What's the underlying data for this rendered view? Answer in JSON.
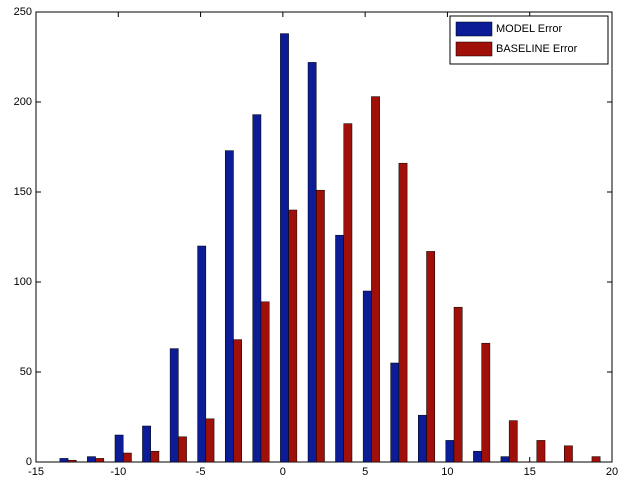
{
  "chart_data": {
    "type": "grouped-bar",
    "x": [
      -13.05,
      -11.38,
      -9.7,
      -8.03,
      -6.35,
      -4.68,
      -3.0,
      -1.33,
      0.35,
      2.03,
      3.7,
      5.38,
      7.05,
      8.73,
      10.4,
      12.08,
      13.75,
      15.43,
      17.1,
      18.78
    ],
    "series": [
      {
        "name": "MODEL Error",
        "color": "#0b1c96",
        "values": [
          2,
          3,
          15,
          20,
          63,
          120,
          173,
          193,
          238,
          222,
          126,
          95,
          55,
          26,
          12,
          6,
          3,
          0,
          0,
          0
        ]
      },
      {
        "name": "BASELINE Error",
        "color": "#a01008",
        "values": [
          1,
          2,
          5,
          6,
          14,
          24,
          68,
          89,
          140,
          151,
          188,
          203,
          166,
          117,
          86,
          66,
          23,
          12,
          9,
          3
        ]
      }
    ],
    "xlim": [
      -15,
      20
    ],
    "xticks": [
      -15,
      -10,
      -5,
      0,
      5,
      10,
      15,
      20
    ],
    "ylim": [
      0,
      250
    ],
    "yticks": [
      0,
      50,
      100,
      150,
      200,
      250
    ],
    "grid": false,
    "legend": "top-right"
  }
}
